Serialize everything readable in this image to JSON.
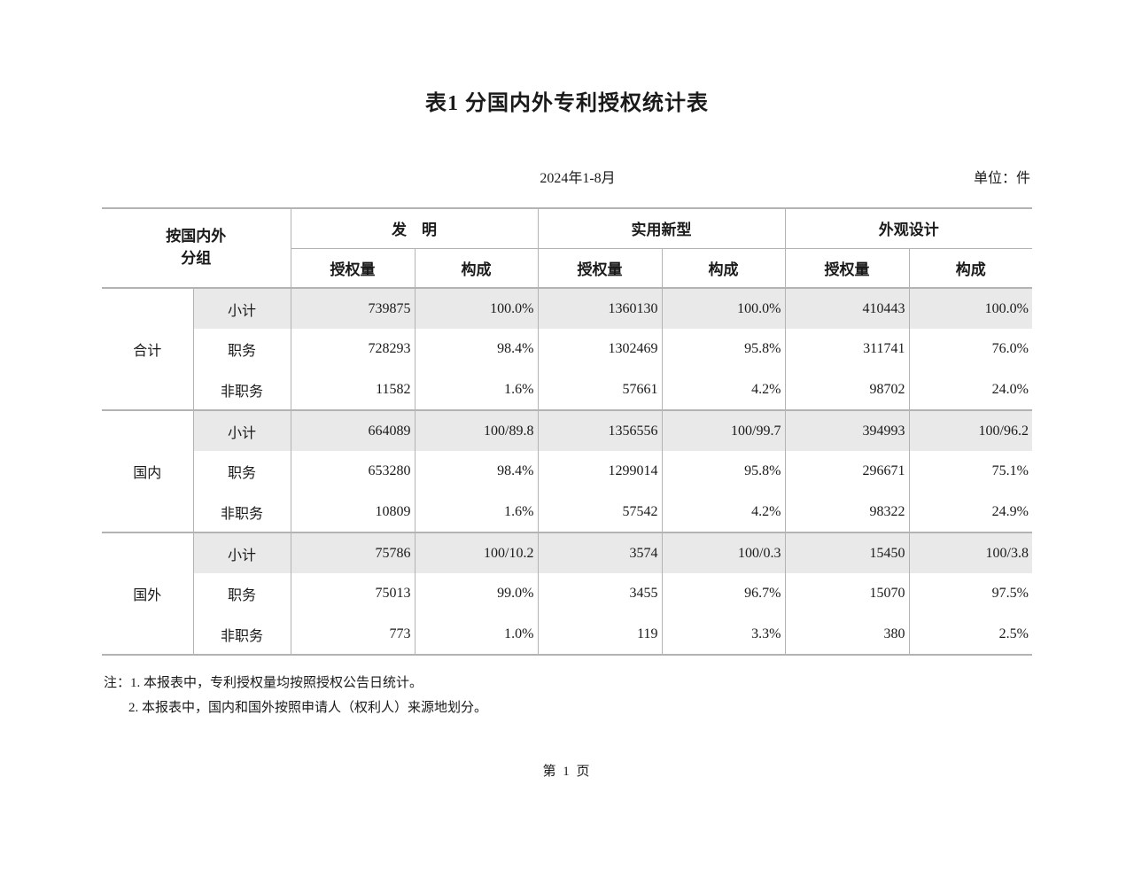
{
  "page": {
    "title": "表1 分国内外专利授权统计表",
    "period": "2024年1-8月",
    "unit_label": "单位：件",
    "note1": "注：1. 本报表中，专利授权量均按照授权公告日统计。",
    "note2": "2. 本报表中，国内和国外按照申请人（权利人）来源地划分。",
    "footer": "第 1 页"
  },
  "colors": {
    "border_gray": "#b3b3b3",
    "row_shade": "#e9e9e9",
    "text": "#1a1a1a"
  },
  "table": {
    "corner": {
      "line1": "按国内外",
      "line2": "分组"
    },
    "col_groups": [
      {
        "label": "发　明"
      },
      {
        "label": "实用新型"
      },
      {
        "label": "外观设计"
      }
    ],
    "sub_headers": [
      "授权量",
      "构成"
    ],
    "row_groups": [
      {
        "label": "合计",
        "rows": [
          {
            "label": "小计",
            "values": [
              "739875",
              "100.0%",
              "1360130",
              "100.0%",
              "410443",
              "100.0%"
            ]
          },
          {
            "label": "职务",
            "values": [
              "728293",
              "98.4%",
              "1302469",
              "95.8%",
              "311741",
              "76.0%"
            ]
          },
          {
            "label": "非职务",
            "values": [
              "11582",
              "1.6%",
              "57661",
              "4.2%",
              "98702",
              "24.0%"
            ]
          }
        ]
      },
      {
        "label": "国内",
        "rows": [
          {
            "label": "小计",
            "values": [
              "664089",
              "100/89.8",
              "1356556",
              "100/99.7",
              "394993",
              "100/96.2"
            ]
          },
          {
            "label": "职务",
            "values": [
              "653280",
              "98.4%",
              "1299014",
              "95.8%",
              "296671",
              "75.1%"
            ]
          },
          {
            "label": "非职务",
            "values": [
              "10809",
              "1.6%",
              "57542",
              "4.2%",
              "98322",
              "24.9%"
            ]
          }
        ]
      },
      {
        "label": "国外",
        "rows": [
          {
            "label": "小计",
            "values": [
              "75786",
              "100/10.2",
              "3574",
              "100/0.3",
              "15450",
              "100/3.8"
            ]
          },
          {
            "label": "职务",
            "values": [
              "75013",
              "99.0%",
              "3455",
              "96.7%",
              "15070",
              "97.5%"
            ]
          },
          {
            "label": "非职务",
            "values": [
              "773",
              "1.0%",
              "119",
              "3.3%",
              "380",
              "2.5%"
            ]
          }
        ]
      }
    ]
  }
}
